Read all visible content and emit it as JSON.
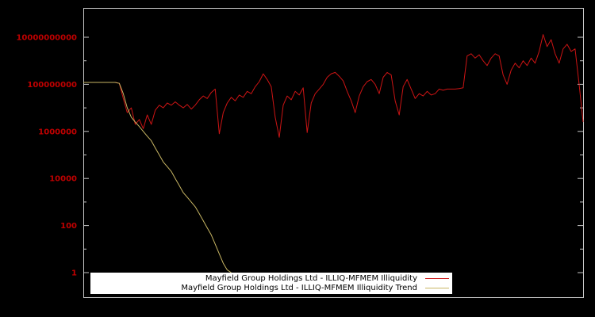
{
  "colors": {
    "background": "#000000",
    "axis_border": "#c8c8c8",
    "tick_label": "#c00000",
    "legend_bg": "#ffffff",
    "legend_text": "#000000",
    "series_red": "#cc1414",
    "series_yellow": "#c8b664"
  },
  "chart_data": {
    "type": "line",
    "scale": "log",
    "title": "",
    "xlabel": "",
    "ylabel": "",
    "ylim": [
      1,
      10000000000
    ],
    "grid": false,
    "legend_position": "bottom-center",
    "n_points": 126,
    "yticks": [
      {
        "label": "10000000000",
        "value": 10000000000.0
      },
      {
        "label": "100000000",
        "value": 100000000.0
      },
      {
        "label": "1000000",
        "value": 1000000.0
      },
      {
        "label": "10000",
        "value": 10000.0
      },
      {
        "label": "100",
        "value": 100.0
      },
      {
        "label": "1",
        "value": 1
      }
    ],
    "series": [
      {
        "name": "Mayfield Group Holdings Ltd - ILLIQ-MFMEM Illiquidity",
        "color": "#cc1414",
        "values": [
          120000000.0,
          120000000.0,
          120000000.0,
          120000000.0,
          120000000.0,
          120000000.0,
          120000000.0,
          120000000.0,
          120000000.0,
          110000000.0,
          25000000.0,
          6300000.0,
          10000000.0,
          2000000.0,
          3200000.0,
          1300000.0,
          5000000.0,
          2000000.0,
          7900000.0,
          13000000.0,
          10000000.0,
          16000000.0,
          13000000.0,
          18000000.0,
          13000000.0,
          10000000.0,
          14000000.0,
          8900000.0,
          13000000.0,
          22000000.0,
          32000000.0,
          25000000.0,
          45000000.0,
          63000000.0,
          790000.0,
          6300000.0,
          16000000.0,
          28000000.0,
          20000000.0,
          35000000.0,
          28000000.0,
          50000000.0,
          40000000.0,
          79000000.0,
          130000000.0,
          280000000.0,
          160000000.0,
          79000000.0,
          4000000.0,
          560000.0,
          13000000.0,
          32000000.0,
          22000000.0,
          50000000.0,
          35000000.0,
          71000000.0,
          890000.0,
          16000000.0,
          40000000.0,
          63000000.0,
          100000000.0,
          200000000.0,
          280000000.0,
          320000000.0,
          220000000.0,
          140000000.0,
          50000000.0,
          20000000.0,
          6300000.0,
          32000000.0,
          79000000.0,
          130000000.0,
          160000000.0,
          100000000.0,
          40000000.0,
          200000000.0,
          320000000.0,
          250000000.0,
          20000000.0,
          5000000.0,
          79000000.0,
          160000000.0,
          63000000.0,
          25000000.0,
          40000000.0,
          32000000.0,
          50000000.0,
          35000000.0,
          40000000.0,
          63000000.0,
          56000000.0,
          63000000.0,
          63000000.0,
          63000000.0,
          66000000.0,
          71000000.0,
          1600000000.0,
          2000000000.0,
          1300000000.0,
          1800000000.0,
          1000000000.0,
          630000000.0,
          1300000000.0,
          2000000000.0,
          1600000000.0,
          250000000.0,
          100000000.0,
          400000000.0,
          790000000.0,
          500000000.0,
          1000000000.0,
          630000000.0,
          1300000000.0,
          790000000.0,
          2500000000.0,
          13000000000.0,
          4000000000.0,
          7900000000.0,
          2000000000.0,
          790000000.0,
          3200000000.0,
          5000000000.0,
          2500000000.0,
          3200000000.0,
          100000000.0,
          2500000.0
        ]
      },
      {
        "name": "Mayfield Group Holdings Ltd - ILLIQ-MFMEM Illiquidity Trend",
        "color": "#c8b664",
        "values": [
          120000000.0,
          120000000.0,
          120000000.0,
          120000000.0,
          120000000.0,
          120000000.0,
          120000000.0,
          120000000.0,
          120000000.0,
          110000000.0,
          40000000.0,
          10000000.0,
          4000000.0,
          2500000.0,
          1600000.0,
          1000000.0,
          630000.0,
          400000.0,
          200000.0,
          100000.0,
          50000.0,
          32000.0,
          20000.0,
          10000.0,
          5000.0,
          2500.0,
          1600.0,
          1000.0,
          630.0,
          320.0,
          160.0,
          80.0,
          40.0,
          16.0,
          6.3,
          2.5,
          1.3,
          1.0
        ]
      }
    ]
  }
}
